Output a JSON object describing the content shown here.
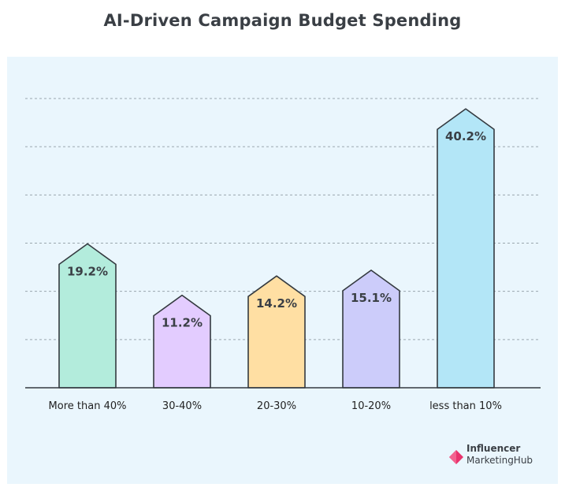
{
  "chart_data": {
    "type": "bar",
    "title": "AI-Driven Campaign Budget Spending",
    "categories": [
      "More than 40%",
      "30-40%",
      "20-30%",
      "10-20%",
      "less than 10%"
    ],
    "values": [
      19.2,
      11.2,
      14.2,
      15.1,
      40.2
    ],
    "value_labels": [
      "19.2%",
      "11.2%",
      "14.2%",
      "15.1%",
      "40.2%"
    ],
    "colors": [
      "#b3ecdc",
      "#e3ccff",
      "#ffdfa3",
      "#ccccfa",
      "#b3e6f7"
    ],
    "xlabel": "",
    "ylabel": "",
    "ylim": [
      0,
      45
    ],
    "grid": true,
    "legend": "none"
  },
  "branding": {
    "line1": "Influencer",
    "line2": "MarketingHub",
    "mark_colors": [
      "#e8336d",
      "#f0507f"
    ]
  }
}
